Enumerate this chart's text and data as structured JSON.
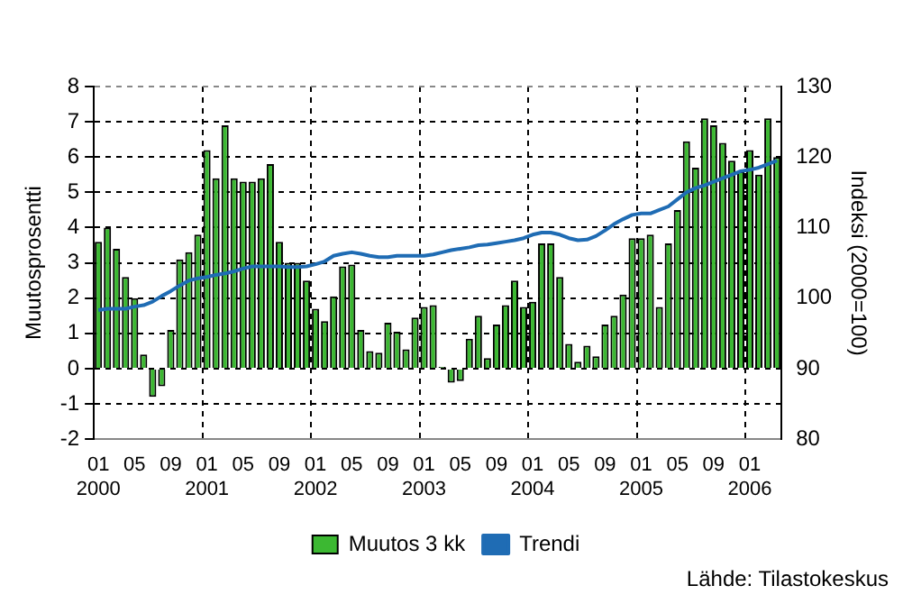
{
  "chart_data": {
    "type": "bar",
    "categories": [
      "01\n2000",
      null,
      null,
      null,
      "05",
      null,
      null,
      null,
      "09",
      null,
      null,
      null,
      "01\n2001",
      null,
      null,
      null,
      "05",
      null,
      null,
      null,
      "09",
      null,
      null,
      null,
      "01\n2002",
      null,
      null,
      null,
      "05",
      null,
      null,
      null,
      "09",
      null,
      null,
      null,
      "01\n2003",
      null,
      null,
      null,
      "05",
      null,
      null,
      null,
      "09",
      null,
      null,
      null,
      "01\n2004",
      null,
      null,
      null,
      "05",
      null,
      null,
      null,
      "09",
      null,
      null,
      null,
      "01\n2005",
      null,
      null,
      null,
      "05",
      null,
      null,
      null,
      "09",
      null,
      null,
      null,
      "01\n2006",
      null,
      null,
      null
    ],
    "series": [
      {
        "name": "Muutos 3 kk",
        "color": "#3cb832",
        "values": [
          3.6,
          4.0,
          3.4,
          2.6,
          2.0,
          0.4,
          -0.8,
          -0.5,
          1.1,
          3.1,
          3.3,
          3.8,
          6.2,
          5.4,
          6.9,
          5.4,
          5.3,
          5.3,
          5.4,
          5.8,
          3.6,
          3.0,
          3.0,
          2.5,
          1.7,
          1.35,
          2.05,
          2.9,
          2.95,
          1.1,
          0.5,
          0.45,
          1.3,
          1.05,
          0.55,
          1.45,
          1.75,
          1.8,
          0.05,
          -0.4,
          -0.35,
          0.85,
          1.5,
          0.3,
          1.25,
          1.8,
          2.5,
          1.75,
          1.9,
          3.55,
          3.55,
          2.6,
          0.7,
          0.2,
          0.65,
          0.35,
          1.25,
          1.5,
          2.1,
          3.7,
          3.7,
          3.8,
          1.75,
          3.55,
          4.5,
          6.45,
          5.7,
          7.1,
          6.9,
          6.4,
          5.9,
          5.6,
          6.2,
          5.5,
          7.1,
          6.0
        ]
      },
      {
        "name": "Trendi",
        "type": "line",
        "axis": "y2",
        "color": "#1f6cb4",
        "values": [
          98.3,
          98.5,
          98.5,
          98.5,
          98.8,
          99.0,
          99.5,
          100.3,
          101.0,
          101.8,
          102.5,
          102.8,
          103.0,
          103.3,
          103.5,
          103.8,
          104.2,
          104.5,
          104.5,
          104.5,
          104.5,
          104.4,
          104.4,
          104.5,
          104.8,
          105.2,
          106.0,
          106.3,
          106.5,
          106.3,
          106.0,
          105.8,
          105.8,
          106.0,
          106.0,
          106.0,
          106.0,
          106.2,
          106.5,
          106.8,
          107.0,
          107.2,
          107.5,
          107.6,
          107.8,
          108.0,
          108.2,
          108.5,
          109.0,
          109.3,
          109.3,
          109.0,
          108.5,
          108.2,
          108.3,
          108.8,
          109.6,
          110.5,
          111.2,
          111.8,
          112.0,
          112.0,
          112.5,
          113.0,
          114.0,
          115.0,
          115.6,
          116.0,
          116.5,
          117.0,
          117.5,
          118.0,
          118.2,
          118.5,
          119.0,
          119.5
        ]
      }
    ],
    "ylabel": "Muutosprosentti",
    "y2label": "Indeksi (2000=100)",
    "ylim": [
      -2,
      8
    ],
    "yticks": [
      -2,
      -1,
      0,
      1,
      2,
      3,
      4,
      5,
      6,
      7,
      8
    ],
    "y2lim": [
      80,
      130
    ],
    "y2ticks": [
      80,
      90,
      100,
      110,
      120,
      130
    ],
    "grid": true,
    "legend": "bottom",
    "marker": "none",
    "annotations": [
      "Lähde: Tilastokeskus"
    ]
  }
}
